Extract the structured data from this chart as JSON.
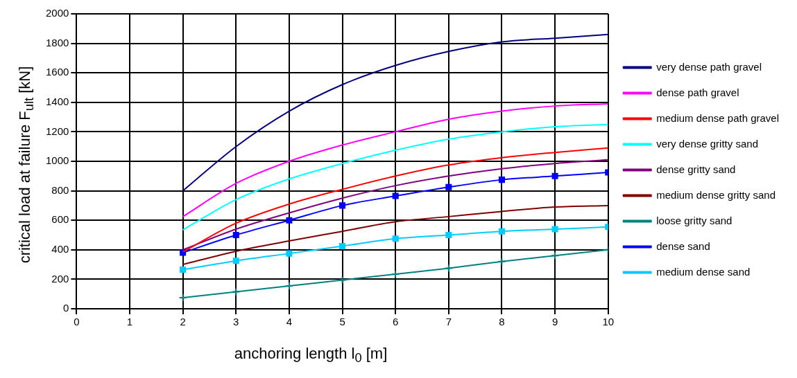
{
  "chart_data": {
    "type": "line",
    "xlabel": "anchoring length l$_{0}$ [m]",
    "ylabel": "critical load at failure F$_{ult}$ [kN]",
    "x": [
      2,
      3,
      4,
      5,
      6,
      7,
      8,
      9,
      10
    ],
    "xlim": [
      0,
      10
    ],
    "xticks": [
      0,
      1,
      2,
      3,
      4,
      5,
      6,
      7,
      8,
      9,
      10
    ],
    "ylim": [
      0,
      2000
    ],
    "yticks": [
      0,
      200,
      400,
      600,
      800,
      1000,
      1200,
      1400,
      1600,
      1800,
      2000
    ],
    "grid": true,
    "legend": "right",
    "marker": "none",
    "series": [
      {
        "name": "very dense path gravel",
        "color": "#000080",
        "values": [
          800,
          1100,
          1340,
          1520,
          1650,
          1745,
          1810,
          1835,
          1860
        ]
      },
      {
        "name": "dense path gravel",
        "color": "#ff00ff",
        "values": [
          625,
          850,
          1000,
          1110,
          1200,
          1285,
          1340,
          1375,
          1390
        ]
      },
      {
        "name": "medium dense path gravel",
        "color": "#ff0000",
        "values": [
          385,
          580,
          710,
          810,
          900,
          975,
          1025,
          1060,
          1090
        ]
      },
      {
        "name": "very dense gritty sand",
        "color": "#00ffff",
        "values": [
          535,
          740,
          880,
          985,
          1075,
          1150,
          1200,
          1235,
          1250
        ]
      },
      {
        "name": "dense gritty sand",
        "color": "#800080",
        "values": [
          400,
          540,
          650,
          750,
          835,
          900,
          950,
          985,
          1010
        ]
      },
      {
        "name": "medium dense gritty sand",
        "color": "#800000",
        "values": [
          300,
          390,
          460,
          525,
          590,
          625,
          660,
          690,
          700
        ]
      },
      {
        "name": "loose gritty sand",
        "color": "#008080",
        "marker": "cross",
        "values": [
          75,
          115,
          155,
          195,
          235,
          275,
          320,
          360,
          400
        ]
      },
      {
        "name": "dense sand",
        "color": "#0000ff",
        "marker": "square",
        "values": [
          380,
          500,
          600,
          700,
          765,
          825,
          875,
          900,
          925
        ]
      },
      {
        "name": "medium dense sand",
        "color": "#00ccff",
        "marker": "square",
        "values": [
          265,
          325,
          375,
          425,
          475,
          500,
          525,
          540,
          555
        ]
      }
    ]
  }
}
